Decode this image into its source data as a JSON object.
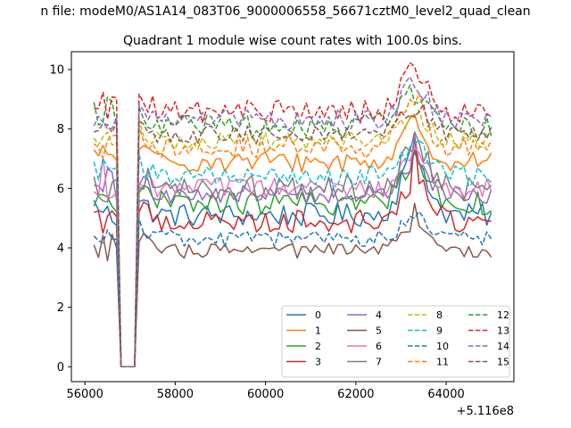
{
  "suptitle": "n file: modeM0/AS1A14_083T06_9000006558_56671cztM0_level2_quad_clean",
  "chart_data": {
    "type": "line",
    "title": "Quadrant 1 module wise count rates with 100.0s bins.",
    "xlabel": "",
    "ylabel": "",
    "x_offset_label": "+5.116e8",
    "xlim": [
      55700,
      65500
    ],
    "ylim": [
      -0.5,
      10.6
    ],
    "xticks": [
      56000,
      58000,
      60000,
      62000,
      64000
    ],
    "xtick_labels": [
      "56000",
      "58000",
      "60000",
      "62000",
      "64000"
    ],
    "yticks": [
      0,
      2,
      4,
      6,
      8,
      10
    ],
    "ytick_labels": [
      "0",
      "2",
      "4",
      "6",
      "8",
      "10"
    ],
    "grid": false,
    "legend": {
      "position": "lower-right",
      "ncol": 4
    },
    "gap": {
      "start": 56800,
      "end": 57100,
      "value": 0
    },
    "x": {
      "start": 56200,
      "end": 65000,
      "step": 100
    },
    "series": [
      {
        "name": "0",
        "color": "#1f77b4",
        "style": "solid",
        "mean": 5.1,
        "amp": 0.4,
        "bump": 2.0,
        "startVal": 5.6,
        "peakVal": 7.2
      },
      {
        "name": "1",
        "color": "#ff7f0e",
        "style": "solid",
        "mean": 6.9,
        "amp": 0.35,
        "bump": 1.2,
        "startVal": 7.3,
        "peakVal": 8.5
      },
      {
        "name": "2",
        "color": "#2ca02c",
        "style": "solid",
        "mean": 5.5,
        "amp": 0.4,
        "bump": 1.5,
        "startVal": 5.4,
        "peakVal": 7.3
      },
      {
        "name": "3",
        "color": "#d62728",
        "style": "solid",
        "mean": 4.9,
        "amp": 0.4,
        "bump": 1.3,
        "startVal": 5.2,
        "peakVal": 7.8
      },
      {
        "name": "4",
        "color": "#9467bd",
        "style": "solid",
        "mean": 5.8,
        "amp": 0.3,
        "bump": 1.0,
        "startVal": 6.1,
        "peakVal": 7.8
      },
      {
        "name": "5",
        "color": "#8c564b",
        "style": "solid",
        "mean": 3.9,
        "amp": 0.25,
        "bump": 0.8,
        "startVal": 4.1,
        "peakVal": 5.5
      },
      {
        "name": "6",
        "color": "#e377c2",
        "style": "solid",
        "mean": 6.0,
        "amp": 0.35,
        "bump": 1.1,
        "startVal": 5.9,
        "peakVal": 7.4
      },
      {
        "name": "7",
        "color": "#7f7f7f",
        "style": "solid",
        "mean": 6.0,
        "amp": 0.45,
        "bump": 1.4,
        "startVal": 6.4,
        "peakVal": 7.9
      },
      {
        "name": "8",
        "color": "#bcbd22",
        "style": "dashed",
        "mean": 7.6,
        "amp": 0.3,
        "bump": 0.9,
        "startVal": 7.7,
        "peakVal": 8.4
      },
      {
        "name": "9",
        "color": "#17becf",
        "style": "dashed",
        "mean": 6.4,
        "amp": 0.35,
        "bump": 1.0,
        "startVal": 6.9,
        "peakVal": 7.5
      },
      {
        "name": "10",
        "color": "#1f77b4",
        "style": "dashed",
        "mean": 4.3,
        "amp": 0.3,
        "bump": 0.7,
        "startVal": 4.4,
        "peakVal": 5.0
      },
      {
        "name": "11",
        "color": "#ff7f0e",
        "style": "dashed",
        "mean": 7.4,
        "amp": 0.4,
        "bump": 1.5,
        "startVal": 7.5,
        "peakVal": 8.8
      },
      {
        "name": "12",
        "color": "#2ca02c",
        "style": "dashed",
        "mean": 8.1,
        "amp": 0.4,
        "bump": 1.2,
        "startVal": 8.9,
        "peakVal": 8.9
      },
      {
        "name": "13",
        "color": "#d62728",
        "style": "dashed",
        "mean": 8.6,
        "amp": 0.4,
        "bump": 1.4,
        "startVal": 8.7,
        "peakVal": 10.1
      },
      {
        "name": "14",
        "color": "#9467bd",
        "style": "dashed",
        "mean": 8.3,
        "amp": 0.35,
        "bump": 1.2,
        "startVal": 8.1,
        "peakVal": 9.4
      },
      {
        "name": "15",
        "color": "#8c564b",
        "style": "dashed",
        "mean": 7.8,
        "amp": 0.3,
        "bump": 1.0,
        "startVal": 7.9,
        "peakVal": 8.4
      }
    ]
  }
}
